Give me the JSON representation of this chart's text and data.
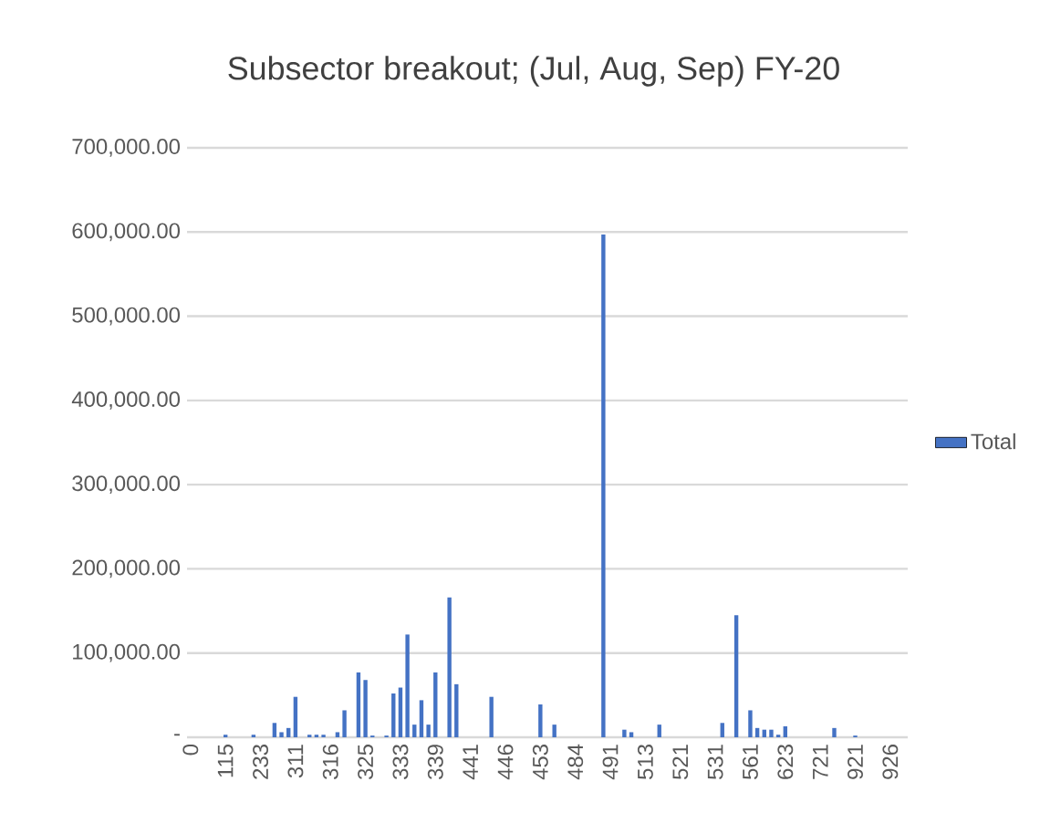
{
  "chart_data": {
    "type": "bar",
    "title": "Subsector breakout; (Jul, Aug, Sep) FY-20",
    "categories": [
      "0",
      null,
      null,
      null,
      null,
      "115",
      null,
      null,
      null,
      null,
      "233",
      null,
      null,
      null,
      null,
      "311",
      null,
      null,
      null,
      null,
      "316",
      null,
      null,
      null,
      null,
      "325",
      null,
      null,
      null,
      null,
      "333",
      null,
      null,
      null,
      null,
      "339",
      null,
      null,
      null,
      null,
      "441",
      null,
      null,
      null,
      null,
      "446",
      null,
      null,
      null,
      null,
      "453",
      null,
      null,
      null,
      null,
      "484",
      null,
      null,
      null,
      null,
      "491",
      null,
      null,
      null,
      null,
      "513",
      null,
      null,
      null,
      null,
      "521",
      null,
      null,
      null,
      null,
      "531",
      null,
      null,
      null,
      null,
      "561",
      null,
      null,
      null,
      null,
      "623",
      null,
      null,
      null,
      null,
      "721",
      null,
      null,
      null,
      null,
      "921",
      null,
      null,
      null,
      null,
      "926",
      null,
      null
    ],
    "series": [
      {
        "name": "Total",
        "color": "#4472c4",
        "values": [
          null,
          null,
          null,
          null,
          null,
          3000,
          null,
          null,
          null,
          3000,
          null,
          null,
          17000,
          6000,
          11000,
          48000,
          null,
          3000,
          3000,
          3000,
          null,
          6000,
          32000,
          null,
          77000,
          68000,
          2000,
          null,
          2000,
          52000,
          59000,
          122000,
          15000,
          44000,
          15000,
          77000,
          null,
          166000,
          63000,
          null,
          null,
          null,
          null,
          48000,
          null,
          null,
          null,
          null,
          null,
          null,
          39000,
          null,
          15000,
          null,
          null,
          null,
          null,
          null,
          null,
          597000,
          null,
          null,
          9000,
          6000,
          null,
          null,
          null,
          15000,
          null,
          null,
          null,
          null,
          null,
          null,
          null,
          null,
          17000,
          null,
          145000,
          null,
          32000,
          11000,
          9000,
          9000,
          3000,
          13000,
          null,
          null,
          null,
          null,
          null,
          null,
          11000,
          null,
          null,
          2000,
          null,
          null,
          null,
          null,
          null,
          null,
          null
        ]
      }
    ],
    "ylim": [
      0,
      700000
    ],
    "yticks": [
      {
        "value": 0,
        "label": "-"
      },
      {
        "value": 100000,
        "label": "100,000.00"
      },
      {
        "value": 200000,
        "label": "200,000.00"
      },
      {
        "value": 300000,
        "label": "300,000.00"
      },
      {
        "value": 400000,
        "label": "400,000.00"
      },
      {
        "value": 500000,
        "label": "500,000.00"
      },
      {
        "value": 600000,
        "label": "600,000.00"
      },
      {
        "value": 700000,
        "label": "700,000.00"
      }
    ],
    "grid": "y",
    "legend": "right"
  }
}
